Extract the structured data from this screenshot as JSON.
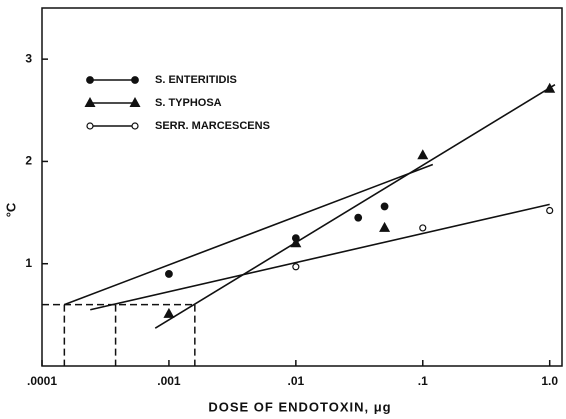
{
  "chart_data": {
    "type": "scatter",
    "xlabel": "DOSE OF ENDOTOXIN, μg",
    "ylabel": "°C",
    "xscale": "log",
    "xlim": [
      0.0001,
      1.25
    ],
    "ylim": [
      0,
      3.5
    ],
    "xticks": [
      {
        "value": 0.0001,
        "label": ".0001"
      },
      {
        "value": 0.001,
        "label": ".001"
      },
      {
        "value": 0.01,
        "label": ".01"
      },
      {
        "value": 0.1,
        "label": ".1"
      },
      {
        "value": 1,
        "label": "1.0"
      }
    ],
    "yticks": [
      1,
      2,
      3
    ],
    "legend": "upper left",
    "color": "#111111",
    "series": [
      {
        "name": "S. ENTERITIDIS",
        "marker": "filled-circle",
        "x": [
          0.001,
          0.01,
          0.031,
          0.05
        ],
        "values": [
          0.9,
          1.25,
          1.45,
          1.56
        ],
        "fit_x": [
          0.00015,
          0.12
        ],
        "fit_y": [
          0.6,
          1.97
        ]
      },
      {
        "name": "S. TYPHOSA",
        "marker": "triangle",
        "x": [
          0.001,
          0.01,
          0.05,
          0.1,
          1
        ],
        "values": [
          0.51,
          1.2,
          1.35,
          2.06,
          2.71
        ],
        "fit_x": [
          0.00078,
          1.1
        ],
        "fit_y": [
          0.37,
          2.75
        ]
      },
      {
        "name": "SERR. MARCESCENS",
        "marker": "open-circle",
        "x": [
          0.01,
          0.1,
          1
        ],
        "values": [
          0.97,
          1.35,
          1.52
        ],
        "fit_x": [
          0.00024,
          1
        ],
        "fit_y": [
          0.55,
          1.58
        ]
      }
    ],
    "reference_y": 0.6,
    "reference_x": [
      0.00015,
      0.00038,
      0.0016
    ]
  }
}
